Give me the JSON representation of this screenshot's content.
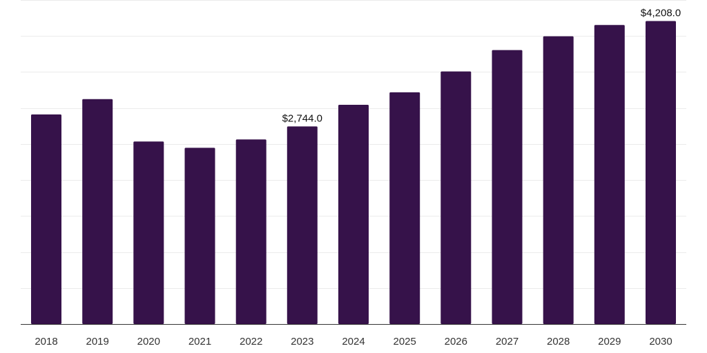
{
  "chart_data": {
    "type": "bar",
    "title": "",
    "xlabel": "",
    "ylabel": "",
    "categories": [
      "2018",
      "2019",
      "2020",
      "2021",
      "2022",
      "2023",
      "2024",
      "2025",
      "2026",
      "2027",
      "2028",
      "2029",
      "2030"
    ],
    "values": [
      2911,
      3124,
      2534,
      2447,
      2563,
      2744,
      3045,
      3218,
      3508,
      3805,
      3996,
      4152,
      4208
    ],
    "data_labels": [
      {
        "index": 5,
        "text": "$2,744.0"
      },
      {
        "index": 12,
        "text": "$4,208.0"
      }
    ],
    "ylim": [
      0,
      4500
    ],
    "grid": true,
    "bar_color": "#36124a",
    "grid_color": "#ebebeb",
    "axis_color": "#333333",
    "text_color": "#333333"
  }
}
